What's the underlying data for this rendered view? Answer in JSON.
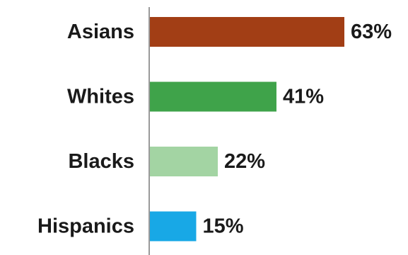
{
  "chart_data": {
    "type": "bar",
    "orientation": "horizontal",
    "categories": [
      "Asians",
      "Whites",
      "Blacks",
      "Hispanics"
    ],
    "values": [
      63,
      41,
      22,
      15
    ],
    "value_labels": [
      "63%",
      "41%",
      "22%",
      "15%"
    ],
    "colors": [
      "#A23E15",
      "#3FA34A",
      "#A3D4A3",
      "#18A8E6"
    ],
    "xlim": [
      0,
      63
    ],
    "grid": false,
    "legend": "none"
  }
}
